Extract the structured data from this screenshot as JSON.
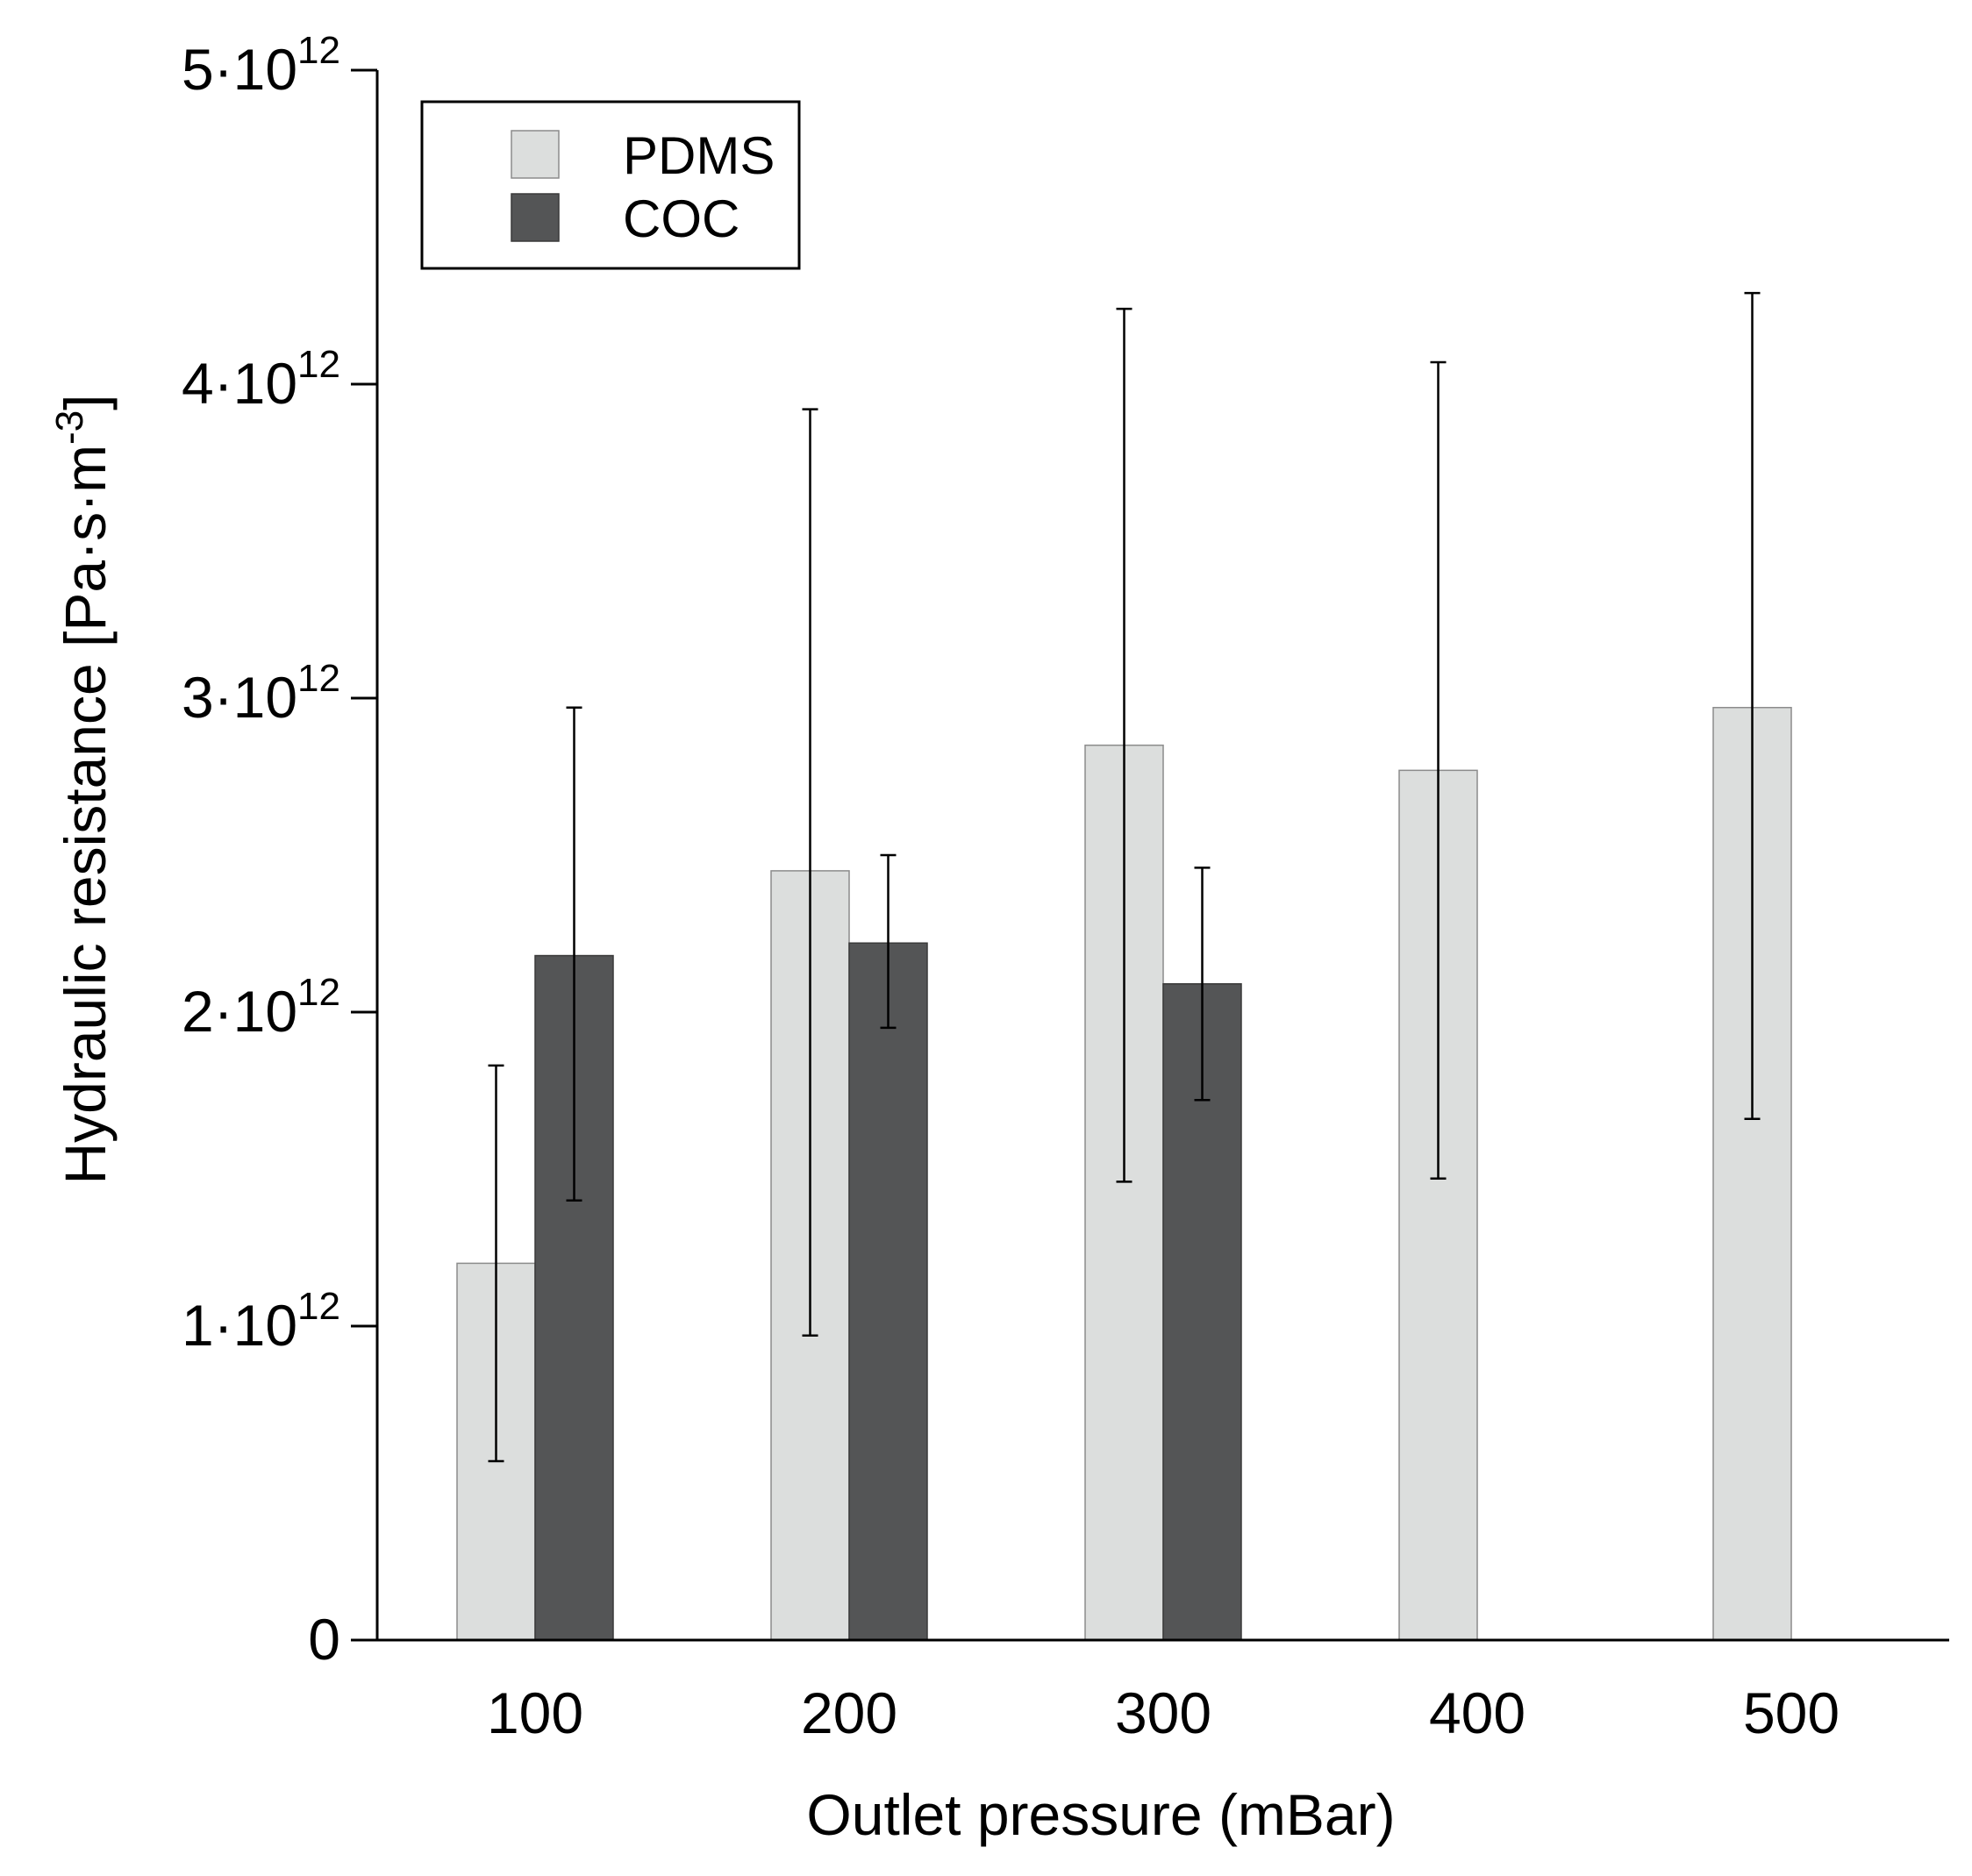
{
  "chart_data": {
    "type": "bar",
    "title": "",
    "xlabel": "Outlet pressure (mBar)",
    "ylabel": {
      "main": "Hydraulic resistance [Pa·s·m",
      "exponent": "-3",
      "close": "]"
    },
    "categories": [
      "100",
      "200",
      "300",
      "400",
      "500"
    ],
    "ylim": [
      0,
      5000000000000.0
    ],
    "yticks": [
      {
        "value": 0,
        "mantissa": "0",
        "exponent": ""
      },
      {
        "value": 1000000000000.0,
        "mantissa": "1·10",
        "exponent": "12"
      },
      {
        "value": 2000000000000.0,
        "mantissa": "2·10",
        "exponent": "12"
      },
      {
        "value": 3000000000000.0,
        "mantissa": "3·10",
        "exponent": "12"
      },
      {
        "value": 4000000000000.0,
        "mantissa": "4·10",
        "exponent": "12"
      },
      {
        "value": 5000000000000.0,
        "mantissa": "5·10",
        "exponent": "12"
      }
    ],
    "series": [
      {
        "name": "PDMS",
        "color": "#dcdedd",
        "stroke": "#8c8c8c",
        "values": [
          1200000000000.0,
          2450000000000.0,
          2850000000000.0,
          2770000000000.0,
          2970000000000.0
        ],
        "err_low": [
          570000000000.0,
          970000000000.0,
          1460000000000.0,
          1470000000000.0,
          1660000000000.0
        ],
        "err_high": [
          1830000000000.0,
          3920000000000.0,
          4240000000000.0,
          4070000000000.0,
          4290000000000.0
        ]
      },
      {
        "name": "COC",
        "color": "#545556",
        "stroke": "#3a3a3a",
        "values": [
          2180000000000.0,
          2220000000000.0,
          2090000000000.0,
          null,
          null
        ],
        "err_low": [
          1400000000000.0,
          1950000000000.0,
          1720000000000.0,
          null,
          null
        ],
        "err_high": [
          2970000000000.0,
          2500000000000.0,
          2460000000000.0,
          null,
          null
        ]
      }
    ],
    "legend_position": "top-left"
  }
}
